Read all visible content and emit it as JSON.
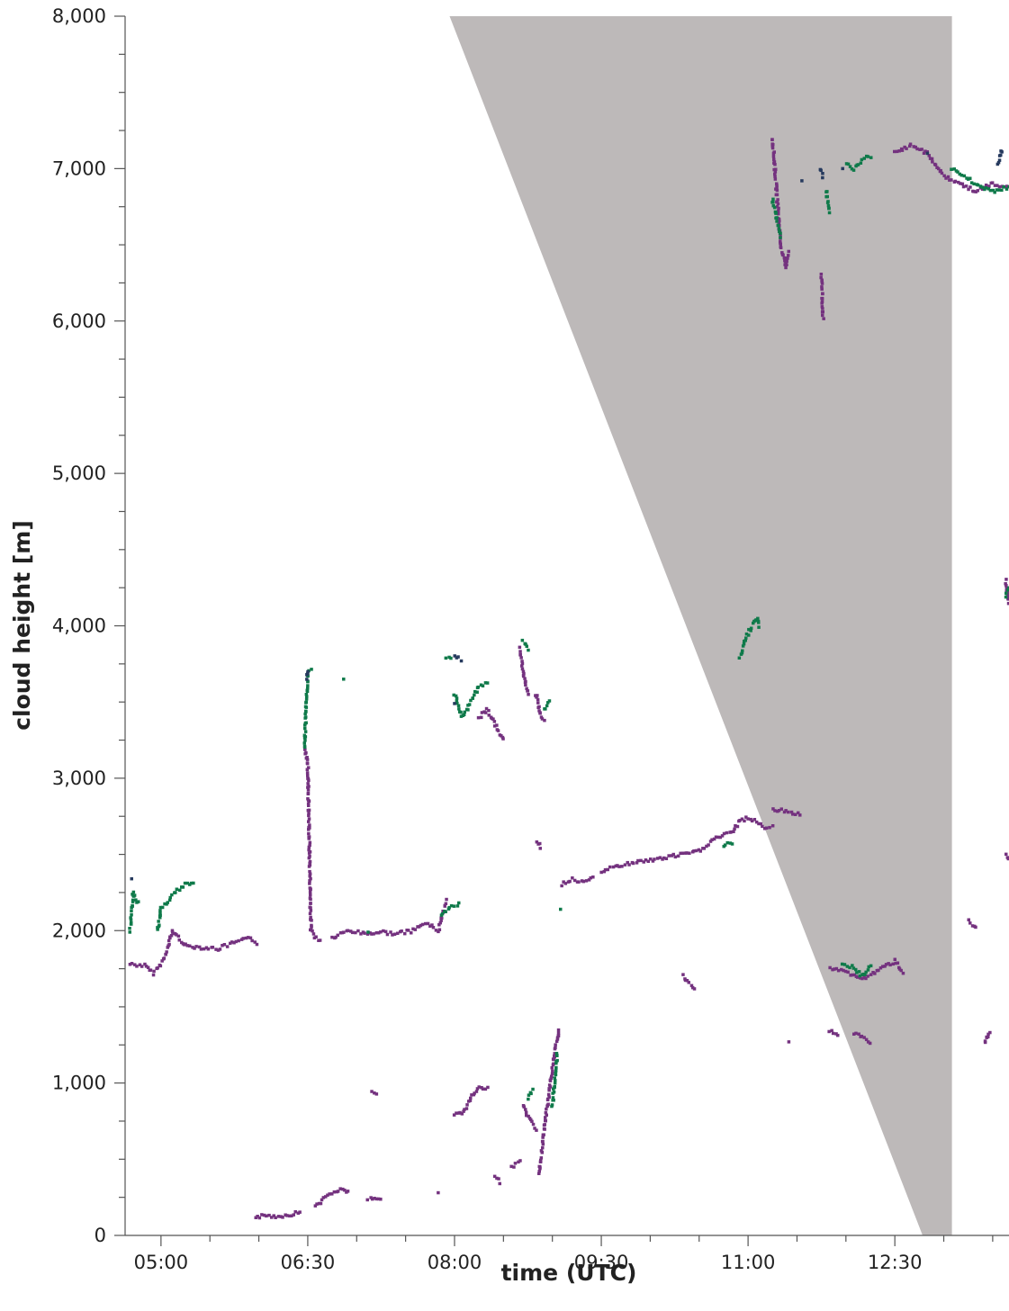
{
  "chart_data": {
    "type": "scatter",
    "title": "",
    "xlabel": "time (UTC)",
    "ylabel": "cloud height [m]",
    "xlim": [
      "04:38",
      "13:40"
    ],
    "ylim": [
      0,
      8000
    ],
    "x_ticks": [
      "05:00",
      "06:30",
      "08:00",
      "09:30",
      "11:00",
      "12:30"
    ],
    "y_ticks": [
      "0",
      "1,000",
      "2,000",
      "3,000",
      "4,000",
      "5,000",
      "6,000",
      "7,000",
      "8,000"
    ],
    "grid": false,
    "legend": "none",
    "colors": {
      "layer_low": "#74327f",
      "layer_mid": "#0f7a4a",
      "layer_high": "#263a5e",
      "shaded_region": "#bdb9b9"
    },
    "shaded_region": {
      "description_points": [
        {
          "time": "07:57",
          "height": 8000
        },
        {
          "time": "13:05",
          "height": 8000
        },
        {
          "time": "13:05",
          "height": 0
        },
        {
          "time": "12:47",
          "height": 0
        }
      ]
    },
    "series": [
      {
        "color": "#74327f",
        "segments": [
          {
            "t": [
              "04:41",
              "04:50",
              "04:55",
              "05:00",
              "05:03",
              "05:07",
              "05:15",
              "05:25",
              "05:35",
              "05:45",
              "05:55",
              "05:59"
            ],
            "h": [
              1780,
              1770,
              1720,
              1780,
              1840,
              2000,
              1900,
              1890,
              1880,
              1920,
              1950,
              1920
            ]
          },
          {
            "t": [
              "05:58",
              "06:05",
              "06:12",
              "06:20",
              "06:25"
            ],
            "h": [
              120,
              130,
              125,
              140,
              150
            ]
          },
          {
            "t": [
              "06:28",
              "06:30",
              "06:32",
              "06:35",
              "06:38"
            ],
            "h": [
              3200,
              3100,
              2000,
              1950,
              1930
            ]
          },
          {
            "t": [
              "06:35",
              "06:40",
              "06:45",
              "06:50",
              "06:55"
            ],
            "h": [
              190,
              240,
              280,
              300,
              290
            ]
          },
          {
            "t": [
              "06:45",
              "06:55",
              "07:05",
              "07:15",
              "07:25",
              "07:35",
              "07:42",
              "07:50",
              "07:55"
            ],
            "h": [
              1950,
              2000,
              1980,
              1990,
              1980,
              2000,
              2050,
              2000,
              2200
            ]
          },
          {
            "t": [
              "07:09",
              "07:12"
            ],
            "h": [
              950,
              930
            ]
          },
          {
            "t": [
              "07:07",
              "07:15"
            ],
            "h": [
              240,
              230
            ]
          },
          {
            "t": [
              "07:50"
            ],
            "h": [
              280
            ]
          },
          {
            "t": [
              "08:00",
              "08:05",
              "08:10",
              "08:15",
              "08:20"
            ],
            "h": [
              790,
              800,
              900,
              980,
              960
            ]
          },
          {
            "t": [
              "08:15",
              "08:20",
              "08:25",
              "08:30"
            ],
            "h": [
              3400,
              3450,
              3350,
              3250
            ]
          },
          {
            "t": [
              "08:25",
              "08:28"
            ],
            "h": [
              380,
              350
            ]
          },
          {
            "t": [
              "08:35",
              "08:40"
            ],
            "h": [
              450,
              480
            ]
          },
          {
            "t": [
              "08:40",
              "08:43",
              "08:45"
            ],
            "h": [
              3850,
              3650,
              3550
            ]
          },
          {
            "t": [
              "08:42",
              "08:45",
              "08:50"
            ],
            "h": [
              850,
              780,
              700
            ]
          },
          {
            "t": [
              "08:50",
              "08:53",
              "08:55"
            ],
            "h": [
              3550,
              3400,
              3380
            ]
          },
          {
            "t": [
              "08:52",
              "08:55",
              "09:00",
              "09:04"
            ],
            "h": [
              400,
              700,
              1100,
              1350
            ]
          },
          {
            "t": [
              "08:50",
              "08:53"
            ],
            "h": [
              2580,
              2550
            ]
          },
          {
            "t": [
              "09:06",
              "09:12",
              "09:18",
              "09:25"
            ],
            "h": [
              2300,
              2340,
              2320,
              2340
            ]
          },
          {
            "t": [
              "09:30",
              "09:40",
              "09:50",
              "10:00",
              "10:10",
              "10:20",
              "10:30",
              "10:40",
              "10:50",
              "10:55",
              "11:00",
              "11:05",
              "11:10",
              "11:15"
            ],
            "h": [
              2390,
              2420,
              2450,
              2460,
              2480,
              2500,
              2520,
              2610,
              2640,
              2720,
              2740,
              2710,
              2680,
              2680
            ]
          },
          {
            "t": [
              "10:20",
              "10:27"
            ],
            "h": [
              1700,
              1620
            ]
          },
          {
            "t": [
              "11:15",
              "11:25",
              "11:32"
            ],
            "h": [
              2800,
              2780,
              2760
            ]
          },
          {
            "t": [
              "11:15",
              "11:20",
              "11:23",
              "11:25"
            ],
            "h": [
              7200,
              6500,
              6350,
              6450
            ]
          },
          {
            "t": [
              "11:25"
            ],
            "h": [
              1270
            ]
          },
          {
            "t": [
              "11:45",
              "11:46"
            ],
            "h": [
              6300,
              6020
            ]
          },
          {
            "t": [
              "11:50",
              "12:00",
              "12:10",
              "12:20",
              "12:30",
              "12:35"
            ],
            "h": [
              1750,
              1730,
              1680,
              1740,
              1800,
              1730
            ]
          },
          {
            "t": [
              "11:50",
              "11:55"
            ],
            "h": [
              1340,
              1320
            ]
          },
          {
            "t": [
              "12:05",
              "12:10",
              "12:15"
            ],
            "h": [
              1320,
              1300,
              1260
            ]
          },
          {
            "t": [
              "12:30",
              "12:40",
              "12:50",
              "13:00",
              "13:10",
              "13:20",
              "13:30",
              "13:40"
            ],
            "h": [
              7100,
              7150,
              7100,
              6950,
              6900,
              6850,
              6900,
              6870
            ]
          },
          {
            "t": [
              "13:15",
              "13:20"
            ],
            "h": [
              2060,
              2020
            ]
          },
          {
            "t": [
              "13:25",
              "13:28"
            ],
            "h": [
              1260,
              1340
            ]
          },
          {
            "t": [
              "13:38",
              "13:40"
            ],
            "h": [
              2500,
              2480
            ]
          },
          {
            "t": [
              "13:38",
              "13:40"
            ],
            "h": [
              4300,
              4150
            ]
          }
        ]
      },
      {
        "color": "#0f7a4a",
        "segments": [
          {
            "t": [
              "04:41",
              "04:43",
              "04:46"
            ],
            "h": [
              2000,
              2250,
              2180
            ]
          },
          {
            "t": [
              "04:58",
              "05:00",
              "05:10",
              "05:15",
              "05:20"
            ],
            "h": [
              2000,
              2150,
              2260,
              2300,
              2310
            ]
          },
          {
            "t": [
              "06:28",
              "06:30",
              "06:32"
            ],
            "h": [
              3200,
              3690,
              3720
            ]
          },
          {
            "t": [
              "06:52"
            ],
            "h": [
              3650
            ]
          },
          {
            "t": [
              "07:07"
            ],
            "h": [
              1990
            ]
          },
          {
            "t": [
              "07:52",
              "07:57",
              "08:03"
            ],
            "h": [
              2100,
              2150,
              2170
            ]
          },
          {
            "t": [
              "07:55",
              "07:58"
            ],
            "h": [
              3780,
              3790
            ]
          },
          {
            "t": [
              "08:00",
              "08:05",
              "08:10",
              "08:15",
              "08:20"
            ],
            "h": [
              3550,
              3400,
              3500,
              3600,
              3620
            ]
          },
          {
            "t": [
              "08:42",
              "08:45"
            ],
            "h": [
              3900,
              3850
            ]
          },
          {
            "t": [
              "08:45",
              "08:48"
            ],
            "h": [
              900,
              950
            ]
          },
          {
            "t": [
              "08:55",
              "08:58"
            ],
            "h": [
              3450,
              3500
            ]
          },
          {
            "t": [
              "09:00",
              "09:03"
            ],
            "h": [
              850,
              1200
            ]
          },
          {
            "t": [
              "09:05"
            ],
            "h": [
              2140
            ]
          },
          {
            "t": [
              "10:45",
              "10:50"
            ],
            "h": [
              2550,
              2580
            ]
          },
          {
            "t": [
              "10:55",
              "11:00",
              "11:05",
              "11:07"
            ],
            "h": [
              3800,
              3950,
              4050,
              4000
            ]
          },
          {
            "t": [
              "11:15",
              "11:20"
            ],
            "h": [
              6800,
              6550
            ]
          },
          {
            "t": [
              "11:48",
              "11:50"
            ],
            "h": [
              6850,
              6720
            ]
          },
          {
            "t": [
              "11:58",
              "12:05",
              "12:10",
              "12:15"
            ],
            "h": [
              1780,
              1760,
              1700,
              1770
            ]
          },
          {
            "t": [
              "12:00",
              "12:05",
              "12:10",
              "12:15"
            ],
            "h": [
              7030,
              7000,
              7060,
              7080
            ]
          },
          {
            "t": [
              "13:05",
              "13:20",
              "13:30",
              "13:40"
            ],
            "h": [
              7000,
              6900,
              6850,
              6880
            ]
          },
          {
            "t": [
              "13:38",
              "13:40"
            ],
            "h": [
              4200,
              4250
            ]
          }
        ]
      },
      {
        "color": "#263a5e",
        "segments": [
          {
            "t": [
              "04:42"
            ],
            "h": [
              2340
            ]
          },
          {
            "t": [
              "06:29",
              "06:30"
            ],
            "h": [
              3660,
              3700
            ]
          },
          {
            "t": [
              "08:00",
              "08:04"
            ],
            "h": [
              3800,
              3780
            ]
          },
          {
            "t": [
              "08:00"
            ],
            "h": [
              3490
            ]
          },
          {
            "t": [
              "11:33"
            ],
            "h": [
              6920
            ]
          },
          {
            "t": [
              "11:44",
              "11:46"
            ],
            "h": [
              6990,
              6950
            ]
          },
          {
            "t": [
              "11:58"
            ],
            "h": [
              7000
            ]
          },
          {
            "t": [
              "12:50"
            ],
            "h": [
              7100
            ]
          },
          {
            "t": [
              "13:33",
              "13:36"
            ],
            "h": [
              7030,
              7120
            ]
          }
        ]
      }
    ]
  }
}
